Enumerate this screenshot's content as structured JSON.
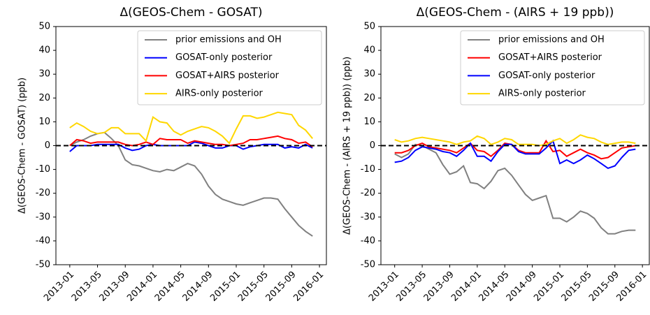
{
  "chart_data": [
    {
      "type": "line",
      "title": "Δ(GEOS-Chem - GOSAT)",
      "y_label": "Δ(GEOS-Chem - GOSAT) (ppb)",
      "x": [
        "2013-01",
        "2013-02",
        "2013-03",
        "2013-04",
        "2013-05",
        "2013-06",
        "2013-07",
        "2013-08",
        "2013-09",
        "2013-10",
        "2013-11",
        "2013-12",
        "2014-01",
        "2014-02",
        "2014-03",
        "2014-04",
        "2014-05",
        "2014-06",
        "2014-07",
        "2014-08",
        "2014-09",
        "2014-10",
        "2014-11",
        "2014-12",
        "2015-01",
        "2015-02",
        "2015-03",
        "2015-04",
        "2015-05",
        "2015-06",
        "2015-07",
        "2015-08",
        "2015-09",
        "2015-10",
        "2015-11",
        "2015-12"
      ],
      "xlim": [
        "2012-11",
        "2016-02"
      ],
      "xticks": [
        "2013-01",
        "2013-05",
        "2013-09",
        "2014-01",
        "2014-05",
        "2014-09",
        "2015-01",
        "2015-05",
        "2015-09",
        "2016-01"
      ],
      "ylim": [
        -50,
        50
      ],
      "yticks": [
        -50,
        -40,
        -30,
        -20,
        -10,
        0,
        10,
        20,
        30,
        40,
        50
      ],
      "reference_line": {
        "value": 0,
        "color": "#000000",
        "style": "dashed"
      },
      "legend": "upper right",
      "series": [
        {
          "name": "prior emissions and OH",
          "color": "#808080",
          "values": [
            0,
            1.5,
            2.5,
            4,
            5,
            5.5,
            3,
            0,
            -6,
            -8,
            -8.5,
            -9.5,
            -10.5,
            -11,
            -10,
            -10.5,
            -9,
            -7.5,
            -8.5,
            -12,
            -17,
            -20.5,
            -22.5,
            -23.5,
            -24.5,
            -25,
            -24,
            -23,
            -22,
            -22,
            -22.5,
            -26.5,
            -30,
            -33.5,
            -36,
            -38
          ]
        },
        {
          "name": "GOSAT-only posterior",
          "color": "#0000ff",
          "values": [
            -2.5,
            0,
            0,
            0,
            0.5,
            0.5,
            0.5,
            0.5,
            -1,
            -2,
            -1.5,
            0,
            0.5,
            0,
            0,
            0,
            0,
            0,
            1.5,
            1,
            0,
            -1,
            -1,
            0,
            0,
            -1.5,
            -0.5,
            0,
            0.5,
            0.5,
            0.5,
            -1,
            -0.5,
            -1,
            0.5,
            -1
          ]
        },
        {
          "name": "GOSAT+AIRS posterior",
          "color": "#ff0000",
          "values": [
            0,
            2.5,
            2,
            1,
            1.5,
            1.5,
            1.5,
            1.5,
            0.5,
            0,
            0.5,
            1.5,
            0.5,
            3,
            2.5,
            2.5,
            2.5,
            1,
            2,
            1.5,
            1,
            0.5,
            0.5,
            0,
            0.5,
            1,
            2.5,
            2.5,
            3,
            3.5,
            4,
            3,
            2.5,
            1,
            1.5,
            -0.5
          ]
        },
        {
          "name": "AIRS-only posterior",
          "color": "#ffd700",
          "values": [
            7.5,
            9.5,
            8,
            6,
            5,
            5.5,
            7.5,
            7.5,
            5,
            5,
            5,
            2,
            12,
            10,
            9.5,
            6,
            4.5,
            6,
            7,
            8,
            7.5,
            6,
            4,
            1,
            7,
            12.5,
            12.5,
            11.5,
            12,
            13,
            14,
            13.5,
            13,
            8.5,
            6.5,
            3
          ]
        }
      ]
    },
    {
      "type": "line",
      "title": "Δ(GEOS-Chem - (AIRS + 19 ppb))",
      "y_label": "Δ(GEOS-Chem - (AIRS + 19 ppb)) (ppb)",
      "x": [
        "2013-01",
        "2013-02",
        "2013-03",
        "2013-04",
        "2013-05",
        "2013-06",
        "2013-07",
        "2013-08",
        "2013-09",
        "2013-10",
        "2013-11",
        "2013-12",
        "2014-01",
        "2014-02",
        "2014-03",
        "2014-04",
        "2014-05",
        "2014-06",
        "2014-07",
        "2014-08",
        "2014-09",
        "2014-10",
        "2014-11",
        "2014-12",
        "2015-01",
        "2015-02",
        "2015-03",
        "2015-04",
        "2015-05",
        "2015-06",
        "2015-07",
        "2015-08",
        "2015-09",
        "2015-10",
        "2015-11",
        "2015-12"
      ],
      "xlim": [
        "2012-11",
        "2016-02"
      ],
      "xticks": [
        "2013-01",
        "2013-05",
        "2013-09",
        "2014-01",
        "2014-05",
        "2014-09",
        "2015-01",
        "2015-05",
        "2015-09",
        "2016-01"
      ],
      "ylim": [
        -50,
        50
      ],
      "yticks": [
        -50,
        -40,
        -30,
        -20,
        -10,
        0,
        10,
        20,
        30,
        40,
        50
      ],
      "reference_line": {
        "value": 0,
        "color": "#000000",
        "style": "dashed"
      },
      "legend": "upper right",
      "series": [
        {
          "name": "prior emissions and OH",
          "color": "#808080",
          "values": [
            -3.5,
            -5,
            -3.5,
            0.5,
            0,
            -1.5,
            -3,
            -8,
            -12,
            -11,
            -8.5,
            -15.5,
            -16,
            -18,
            -15,
            -10.5,
            -9.5,
            -12.5,
            -16.5,
            -20.5,
            -23,
            -22,
            -21,
            -30.5,
            -30.5,
            -32,
            -30,
            -27.5,
            -28.5,
            -30.5,
            -34.5,
            -37,
            -37,
            -36,
            -35.5,
            -35.5
          ]
        },
        {
          "name": "GOSAT+AIRS posterior",
          "color": "#ff0000",
          "values": [
            -3,
            -3,
            -2,
            0,
            1,
            -0.5,
            -1,
            -1.5,
            -2,
            -3,
            -1,
            1,
            -2,
            -2.5,
            -4.5,
            -2,
            1,
            0.5,
            -2,
            -3,
            -3,
            -3,
            2,
            -2.5,
            -2,
            -4.5,
            -3,
            -1.5,
            -3,
            -4,
            -5.5,
            -5,
            -3,
            -1,
            -0.5,
            0
          ]
        },
        {
          "name": "GOSAT-only posterior",
          "color": "#0000ff",
          "values": [
            -7,
            -6.5,
            -5,
            -2,
            -0.5,
            -1,
            -1.5,
            -2.5,
            -3,
            -4.5,
            -2,
            1,
            -4.5,
            -4.5,
            -6.5,
            -2.5,
            0.5,
            0.5,
            -2.5,
            -3.5,
            -3.5,
            -3.5,
            -1,
            2,
            -7.5,
            -6,
            -7.5,
            -6,
            -4,
            -5.5,
            -7.5,
            -9.5,
            -8.5,
            -5,
            -2,
            -1.5
          ]
        },
        {
          "name": "AIRS-only posterior",
          "color": "#ffd700",
          "values": [
            2.5,
            1.5,
            2,
            3,
            3.5,
            3,
            2.5,
            2,
            1.5,
            0.5,
            1.5,
            2,
            4,
            3,
            0.5,
            1.5,
            3,
            2.5,
            0.5,
            0.5,
            0.5,
            0,
            0.5,
            2,
            3,
            1,
            2.5,
            4.5,
            3.5,
            3,
            1.5,
            0.5,
            1,
            1.5,
            1.5,
            1
          ]
        }
      ]
    }
  ]
}
